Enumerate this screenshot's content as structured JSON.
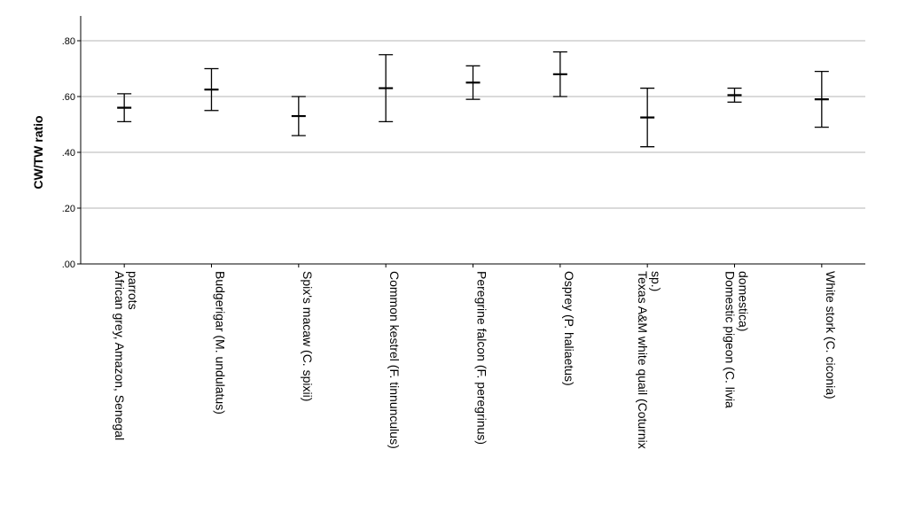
{
  "chart_data": {
    "type": "errorbar",
    "ylabel": "CW/TW ratio",
    "ylim": [
      0,
      0.8
    ],
    "yticks": [
      {
        "value": 0.0,
        "label": ".00"
      },
      {
        "value": 0.2,
        "label": ".20"
      },
      {
        "value": 0.4,
        "label": ".40"
      },
      {
        "value": 0.6,
        "label": ".60"
      },
      {
        "value": 0.8,
        "label": ".80"
      }
    ],
    "grid": true,
    "categories": [
      {
        "lines": [
          "African grey, Amazon, Senegal",
          "parrots"
        ],
        "mean": 0.56,
        "low": 0.51,
        "high": 0.61
      },
      {
        "lines": [
          "Budgerigar (M. undulatus)"
        ],
        "mean": 0.625,
        "low": 0.55,
        "high": 0.7
      },
      {
        "lines": [
          "Spix's macaw (C. spixii)"
        ],
        "mean": 0.53,
        "low": 0.46,
        "high": 0.6
      },
      {
        "lines": [
          "Common kestrel (F. tinnunculus)"
        ],
        "mean": 0.63,
        "low": 0.51,
        "high": 0.75
      },
      {
        "lines": [
          "Peregrine falcon (F. peregrinus)"
        ],
        "mean": 0.65,
        "low": 0.59,
        "high": 0.71
      },
      {
        "lines": [
          "Osprey (P. haliaetus)"
        ],
        "mean": 0.68,
        "low": 0.6,
        "high": 0.76
      },
      {
        "lines": [
          "Texas A&M white quail (Coturnix",
          "sp.)"
        ],
        "mean": 0.525,
        "low": 0.42,
        "high": 0.63
      },
      {
        "lines": [
          "Domestic pigeon (C. livia",
          "domestica)"
        ],
        "mean": 0.605,
        "low": 0.58,
        "high": 0.63
      },
      {
        "lines": [
          "White stork (C. ciconia)"
        ],
        "mean": 0.59,
        "low": 0.49,
        "high": 0.69
      }
    ]
  }
}
